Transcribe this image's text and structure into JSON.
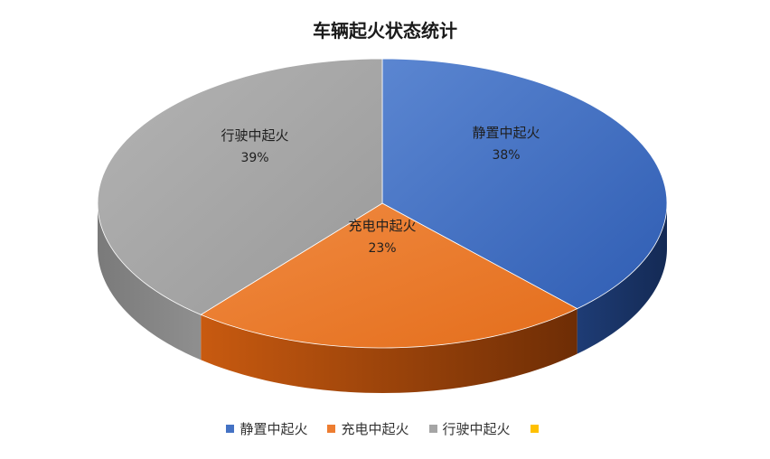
{
  "chart_data": {
    "type": "pie",
    "title": "车辆起火状态统计",
    "slices": [
      {
        "label": "静置中起火",
        "value": 38,
        "display": "38%",
        "color": "#4472C4"
      },
      {
        "label": "充电中起火",
        "value": 23,
        "display": "23%",
        "color": "#ED7D31"
      },
      {
        "label": "行驶中起火",
        "value": 39,
        "display": "39%",
        "color": "#A5A5A5"
      },
      {
        "label": "",
        "value": 0,
        "display": "",
        "color": "#FFC000"
      }
    ],
    "legend_placement": "bottom",
    "style": "3d"
  }
}
